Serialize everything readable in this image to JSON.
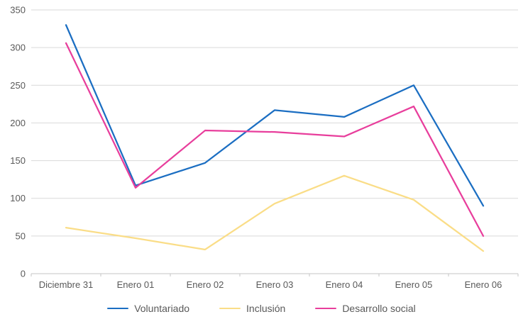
{
  "chart_data": {
    "type": "line",
    "title": "",
    "xlabel": "",
    "ylabel": "",
    "categories": [
      "Diciembre 31",
      "Enero 01",
      "Enero 02",
      "Enero 03",
      "Enero 04",
      "Enero 05",
      "Enero 06"
    ],
    "series": [
      {
        "name": "Voluntariado",
        "color": "#1b6ec2",
        "values": [
          330,
          117,
          147,
          217,
          208,
          250,
          90
        ]
      },
      {
        "name": "Inclusión",
        "color": "#fadd87",
        "values": [
          61,
          47,
          32,
          93,
          130,
          98,
          30
        ]
      },
      {
        "name": "Desarrollo social",
        "color": "#e83e9c",
        "values": [
          306,
          114,
          190,
          188,
          182,
          222,
          50
        ]
      }
    ],
    "ylim": [
      0,
      350
    ],
    "yticks": [
      0,
      50,
      100,
      150,
      200,
      250,
      300,
      350
    ],
    "grid": true,
    "legend_position": "bottom"
  },
  "style": {
    "grid_color": "#d9d9d9",
    "axis_color": "#c6c6c6",
    "tick_text_color": "#595959",
    "background_color": "#ffffff"
  }
}
